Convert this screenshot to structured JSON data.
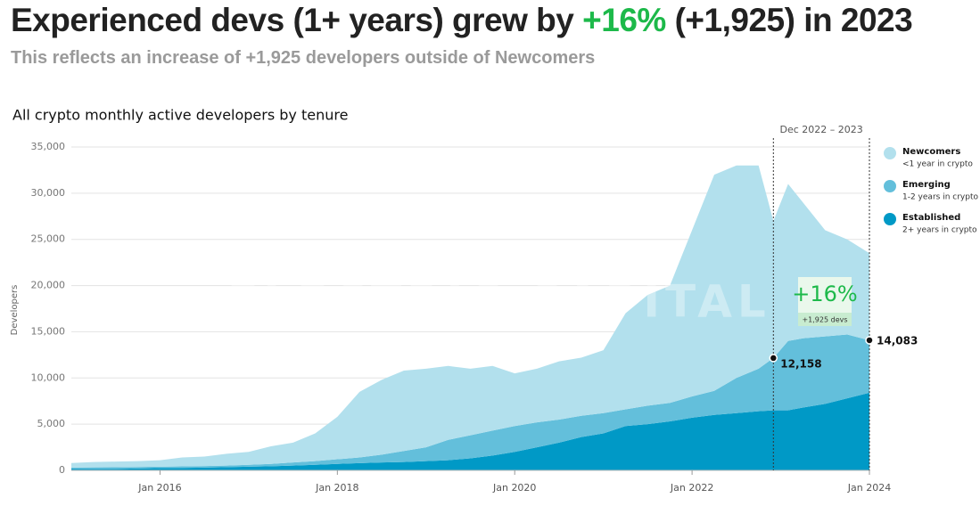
{
  "chart_data": {
    "type": "stacked_area",
    "title_parts": [
      "Experienced devs (1+ years) grew by",
      "+16%",
      "(+1,925) in 2023"
    ],
    "subtitle": "This reflects an increase of +1,925 developers outside of Newcomers",
    "chart_title": "All crypto monthly active developers by tenure",
    "y_label": "Developers",
    "watermark": "ELECTRIC CAPITAL",
    "x": [
      2015.0,
      2015.25,
      2015.5,
      2015.75,
      2016.0,
      2016.25,
      2016.5,
      2016.75,
      2017.0,
      2017.25,
      2017.5,
      2017.75,
      2018.0,
      2018.25,
      2018.5,
      2018.75,
      2019.0,
      2019.25,
      2019.5,
      2019.75,
      2020.0,
      2020.25,
      2020.5,
      2020.75,
      2021.0,
      2021.25,
      2021.5,
      2021.75,
      2022.0,
      2022.25,
      2022.5,
      2022.75,
      2022.917,
      2023.083,
      2023.25,
      2023.5,
      2023.75,
      2024.0
    ],
    "series": [
      {
        "name": "Established",
        "description": "2+ years in crypto",
        "color": "#0099c6",
        "values": [
          150,
          160,
          170,
          200,
          250,
          270,
          300,
          350,
          400,
          450,
          520,
          600,
          700,
          780,
          850,
          900,
          1000,
          1100,
          1300,
          1600,
          2000,
          2500,
          3000,
          3600,
          4000,
          4800,
          5000,
          5300,
          5700,
          6000,
          6200,
          6400,
          6500,
          6500,
          6800,
          7200,
          7800,
          8400
        ]
      },
      {
        "name": "Emerging",
        "description": "1-2 years in crypto",
        "color": "#63bfdb",
        "values": [
          150,
          160,
          170,
          170,
          150,
          160,
          170,
          170,
          200,
          250,
          330,
          400,
          500,
          620,
          850,
          1200,
          1500,
          2200,
          2500,
          2700,
          2800,
          2700,
          2500,
          2300,
          2200,
          1800,
          2000,
          2000,
          2300,
          2600,
          3800,
          4600,
          5658,
          7500,
          7500,
          7300,
          6900,
          5683
        ]
      },
      {
        "name": "Newcomers",
        "description": "<1 year in crypto",
        "color": "#b2e0ed",
        "values": [
          500,
          580,
          610,
          630,
          700,
          970,
          1030,
          1280,
          1400,
          1900,
          2150,
          3000,
          4600,
          7100,
          8100,
          8700,
          8500,
          8000,
          7200,
          7000,
          5700,
          5800,
          6300,
          6300,
          6800,
          10400,
          12000,
          12700,
          18000,
          23400,
          23000,
          22000,
          14842,
          17000,
          14700,
          11500,
          10300,
          9417
        ]
      }
    ],
    "xlim": [
      2015,
      2024
    ],
    "xticks": [
      {
        "value": 2016,
        "label": "Jan 2016"
      },
      {
        "value": 2018,
        "label": "Jan 2018"
      },
      {
        "value": 2020,
        "label": "Jan 2020"
      },
      {
        "value": 2022,
        "label": "Jan 2022"
      },
      {
        "value": 2024,
        "label": "Jan 2024"
      }
    ],
    "ylim": [
      0,
      35000
    ],
    "yticks": [
      0,
      {
        "value": 5000,
        "label": "5,000"
      },
      {
        "value": 10000,
        "label": "10,000"
      },
      {
        "value": 15000,
        "label": "15,000"
      },
      {
        "value": 20000,
        "label": "20,000"
      },
      {
        "value": 25000,
        "label": "25,000"
      },
      {
        "value": 30000,
        "label": "30,000"
      },
      {
        "value": 35000,
        "label": "35,000"
      }
    ],
    "grid": true,
    "legend_position": "right",
    "period": {
      "label": "Dec 2022 – 2023",
      "x": [
        2022.917,
        2024
      ]
    },
    "points": [
      {
        "x": 2022.917,
        "value": 12158,
        "label": "12,158"
      },
      {
        "x": 2024,
        "value": 14083,
        "label": "14,083"
      }
    ],
    "callout": {
      "big": "+16%",
      "small": "+1,925 devs"
    }
  }
}
